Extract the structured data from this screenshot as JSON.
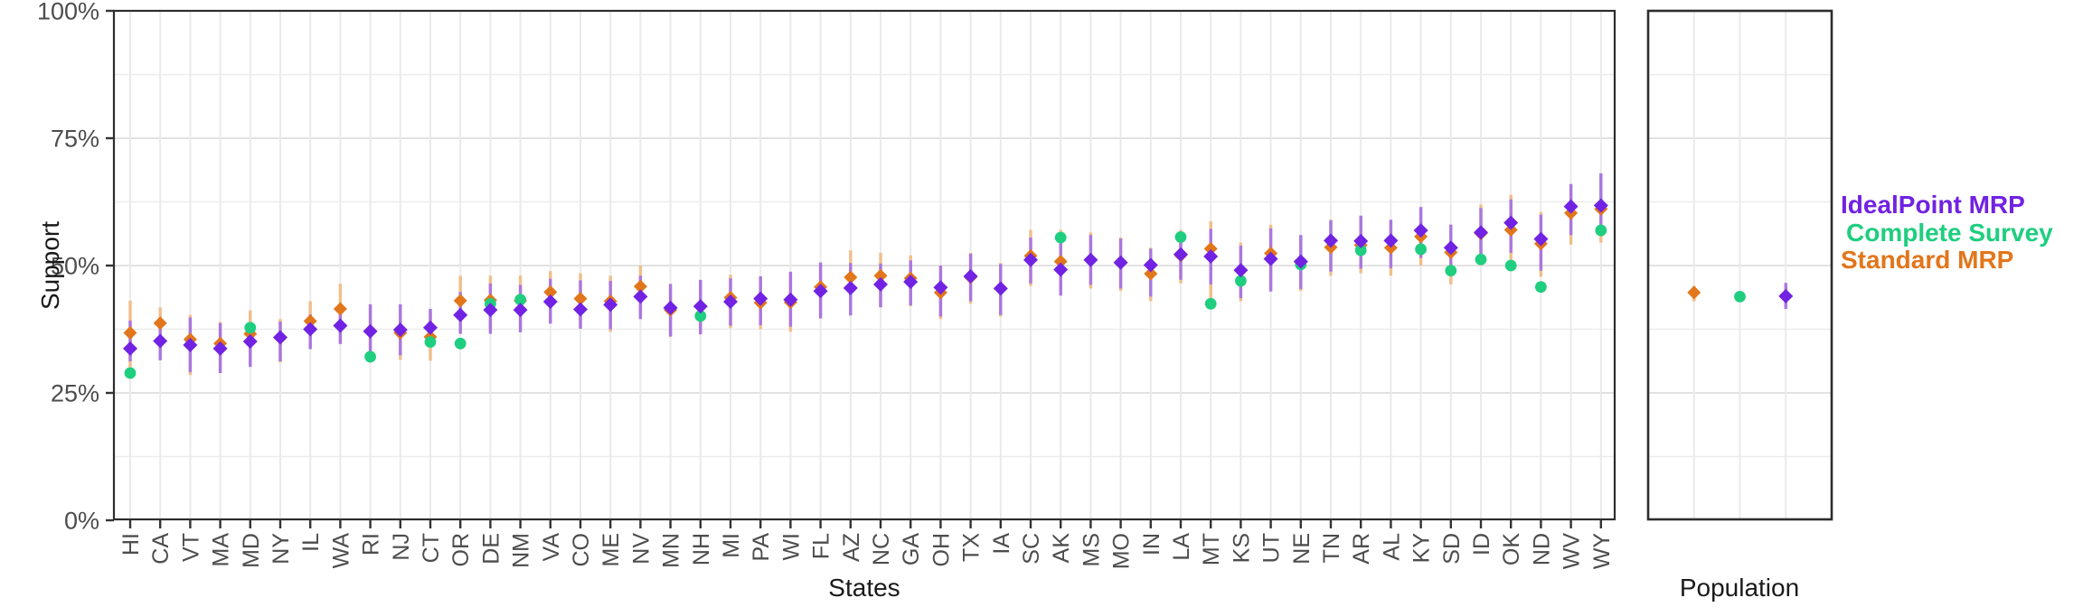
{
  "y_axis": {
    "title": "Support",
    "ticks": [
      {
        "label": "0%",
        "value": 0
      },
      {
        "label": "25%",
        "value": 25
      },
      {
        "label": "50%",
        "value": 50
      },
      {
        "label": "75%",
        "value": 75
      },
      {
        "label": "100%",
        "value": 100
      }
    ]
  },
  "x_axis": {
    "title": "States"
  },
  "population_axis": {
    "title": "Population"
  },
  "legend": {
    "items": [
      {
        "label": "IdealPoint MRP",
        "color": "#7122E2"
      },
      {
        "label": "Complete Survey",
        "color": "#1FCE7F"
      },
      {
        "label": "Standard MRP",
        "color": "#E2761B"
      }
    ]
  },
  "colors": {
    "ideal": "#7122E2",
    "complete": "#1FCE7F",
    "standard": "#E2761B",
    "ideal_ci": "#A977DF",
    "standard_ci": "#F0BE8A",
    "axis_text": "#4D4D4D",
    "grid_major": "#E2E2E2",
    "grid_minor": "#EDEDED",
    "panel_border": "#2D2D2D"
  },
  "chart_data": {
    "type": "scatter",
    "subtype": "pointrange-dot-plot",
    "xlabel": "States",
    "ylabel": "Support",
    "ylim": [
      0,
      100
    ],
    "y_major_ticks": [
      0,
      25,
      50,
      75,
      100
    ],
    "y_minor_gridlines": [
      12.5,
      37.5,
      62.5,
      87.5
    ],
    "grid": true,
    "legend_position": "right",
    "categories": [
      "HI",
      "CA",
      "VT",
      "MA",
      "MD",
      "NY",
      "IL",
      "WA",
      "RI",
      "NJ",
      "CT",
      "OR",
      "DE",
      "NM",
      "VA",
      "CO",
      "ME",
      "NV",
      "MN",
      "NH",
      "MI",
      "PA",
      "WI",
      "FL",
      "AZ",
      "NC",
      "GA",
      "OH",
      "TX",
      "IA",
      "SC",
      "AK",
      "MS",
      "MO",
      "IN",
      "LA",
      "MT",
      "KS",
      "UT",
      "NE",
      "TN",
      "AR",
      "AL",
      "KY",
      "SD",
      "ID",
      "OK",
      "ND",
      "WV",
      "WY"
    ],
    "series": [
      {
        "name": "Standard MRP",
        "shape": "diamond",
        "color": "#E2761B",
        "values": [
          36.8,
          38.7,
          35.5,
          34.7,
          36.6,
          35.8,
          39.1,
          41.5,
          37.2,
          36.8,
          36.0,
          43.1,
          43.2,
          43.1,
          44.8,
          43.5,
          43.0,
          45.9,
          41.3,
          42.0,
          43.7,
          42.7,
          42.8,
          45.8,
          47.7,
          48.0,
          47.5,
          44.7,
          47.7,
          45.5,
          51.9,
          50.8,
          51.1,
          50.5,
          48.4,
          52.0,
          53.3,
          49.0,
          52.4,
          50.7,
          53.6,
          54.0,
          53.5,
          55.7,
          52.6,
          56.3,
          57.0,
          54.3,
          60.3,
          61.1
        ],
        "ci_low": [
          29.5,
          32.5,
          28.5,
          29.0,
          30.5,
          31.0,
          34.0,
          35.0,
          31.6,
          31.5,
          31.3,
          37.0,
          37.5,
          37.5,
          39.0,
          37.6,
          37.0,
          40.5,
          36.0,
          36.5,
          37.7,
          37.5,
          37.0,
          40.0,
          41.5,
          42.0,
          42.0,
          39.5,
          42.5,
          40.0,
          46.0,
          44.5,
          45.5,
          45.0,
          43.0,
          46.5,
          43.6,
          43.0,
          45.5,
          45.0,
          48.0,
          48.5,
          48.0,
          50.0,
          46.3,
          50.0,
          50.9,
          47.8,
          54.1,
          54.5
        ],
        "ci_high": [
          43.1,
          41.8,
          40.3,
          38.9,
          41.2,
          39.5,
          43.0,
          46.4,
          42.4,
          42.0,
          41.0,
          48.0,
          48.0,
          48.0,
          48.9,
          48.5,
          48.0,
          50.0,
          46.0,
          47.0,
          48.2,
          47.5,
          48.0,
          50.5,
          53.0,
          52.5,
          52.0,
          49.5,
          52.5,
          50.5,
          57.0,
          57.0,
          56.5,
          55.5,
          53.5,
          57.0,
          58.7,
          54.5,
          58.0,
          56.0,
          59.0,
          59.5,
          58.5,
          61.0,
          58.1,
          62.0,
          63.9,
          60.5,
          65.7,
          67.5
        ]
      },
      {
        "name": "Complete Survey",
        "shape": "circle",
        "color": "#1FCE7F",
        "values": [
          28.9,
          35.2,
          34.4,
          33.7,
          37.8,
          35.9,
          37.5,
          38.2,
          32.1,
          37.4,
          35.0,
          34.7,
          42.5,
          43.3,
          42.9,
          41.4,
          42.3,
          43.9,
          41.7,
          40.1,
          42.9,
          43.5,
          43.3,
          45.0,
          45.6,
          46.3,
          46.8,
          45.7,
          47.9,
          45.5,
          51.1,
          55.5,
          51.1,
          50.6,
          50.1,
          55.6,
          42.5,
          47.0,
          51.3,
          50.2,
          54.9,
          53.0,
          54.9,
          53.2,
          49.0,
          51.2,
          50.0,
          45.8,
          61.6,
          56.9
        ]
      },
      {
        "name": "IdealPoint MRP",
        "shape": "diamond",
        "color": "#7122E2",
        "values": [
          33.7,
          35.2,
          34.4,
          33.7,
          35.1,
          35.9,
          37.5,
          38.2,
          37.1,
          37.4,
          37.8,
          40.3,
          41.3,
          41.3,
          42.9,
          41.4,
          42.3,
          43.9,
          41.7,
          42.0,
          42.9,
          43.5,
          43.3,
          45.0,
          45.6,
          46.3,
          46.8,
          45.7,
          47.9,
          45.5,
          51.1,
          49.2,
          51.1,
          50.6,
          50.1,
          52.2,
          51.8,
          49.1,
          51.3,
          50.8,
          54.9,
          54.8,
          54.9,
          56.9,
          53.5,
          56.5,
          58.4,
          55.2,
          61.6,
          61.8
        ],
        "ci_low": [
          31.2,
          31.4,
          29.1,
          28.9,
          30.1,
          31.2,
          33.6,
          34.6,
          33.0,
          32.4,
          34.7,
          36.6,
          36.6,
          36.9,
          38.6,
          37.6,
          37.5,
          39.5,
          36.1,
          36.5,
          38.2,
          38.3,
          38.0,
          39.6,
          40.2,
          41.8,
          42.2,
          40.0,
          43.0,
          40.3,
          46.5,
          44.1,
          46.2,
          45.5,
          43.9,
          47.2,
          46.3,
          43.6,
          44.9,
          45.4,
          48.8,
          49.4,
          49.5,
          51.5,
          48.0,
          50.2,
          52.5,
          49.0,
          56.0,
          56.2
        ],
        "ci_high": [
          39.2,
          37.7,
          39.8,
          38.7,
          38.6,
          39.0,
          40.4,
          41.0,
          42.4,
          42.4,
          41.5,
          44.8,
          46.5,
          46.2,
          47.4,
          47.1,
          47.0,
          48.0,
          46.4,
          47.2,
          47.5,
          47.9,
          48.8,
          50.6,
          50.5,
          50.4,
          51.0,
          50.0,
          52.3,
          50.3,
          55.5,
          54.8,
          56.0,
          55.3,
          53.3,
          56.6,
          57.2,
          53.9,
          57.3,
          56.0,
          58.9,
          59.8,
          59.0,
          61.5,
          58.0,
          61.3,
          63.0,
          60.0,
          66.0,
          68.1
        ]
      }
    ],
    "population_panel": {
      "title": "Population",
      "points": [
        {
          "name": "Standard MRP",
          "shape": "diamond",
          "color": "#E2761B",
          "value": 44.7,
          "ci_low": 43.0,
          "ci_high": 46.0
        },
        {
          "name": "Complete Survey",
          "shape": "circle",
          "color": "#1FCE7F",
          "value": 43.9
        },
        {
          "name": "IdealPoint MRP",
          "shape": "diamond",
          "color": "#7122E2",
          "value": 44.0,
          "ci_low": 41.5,
          "ci_high": 46.6
        }
      ]
    }
  }
}
